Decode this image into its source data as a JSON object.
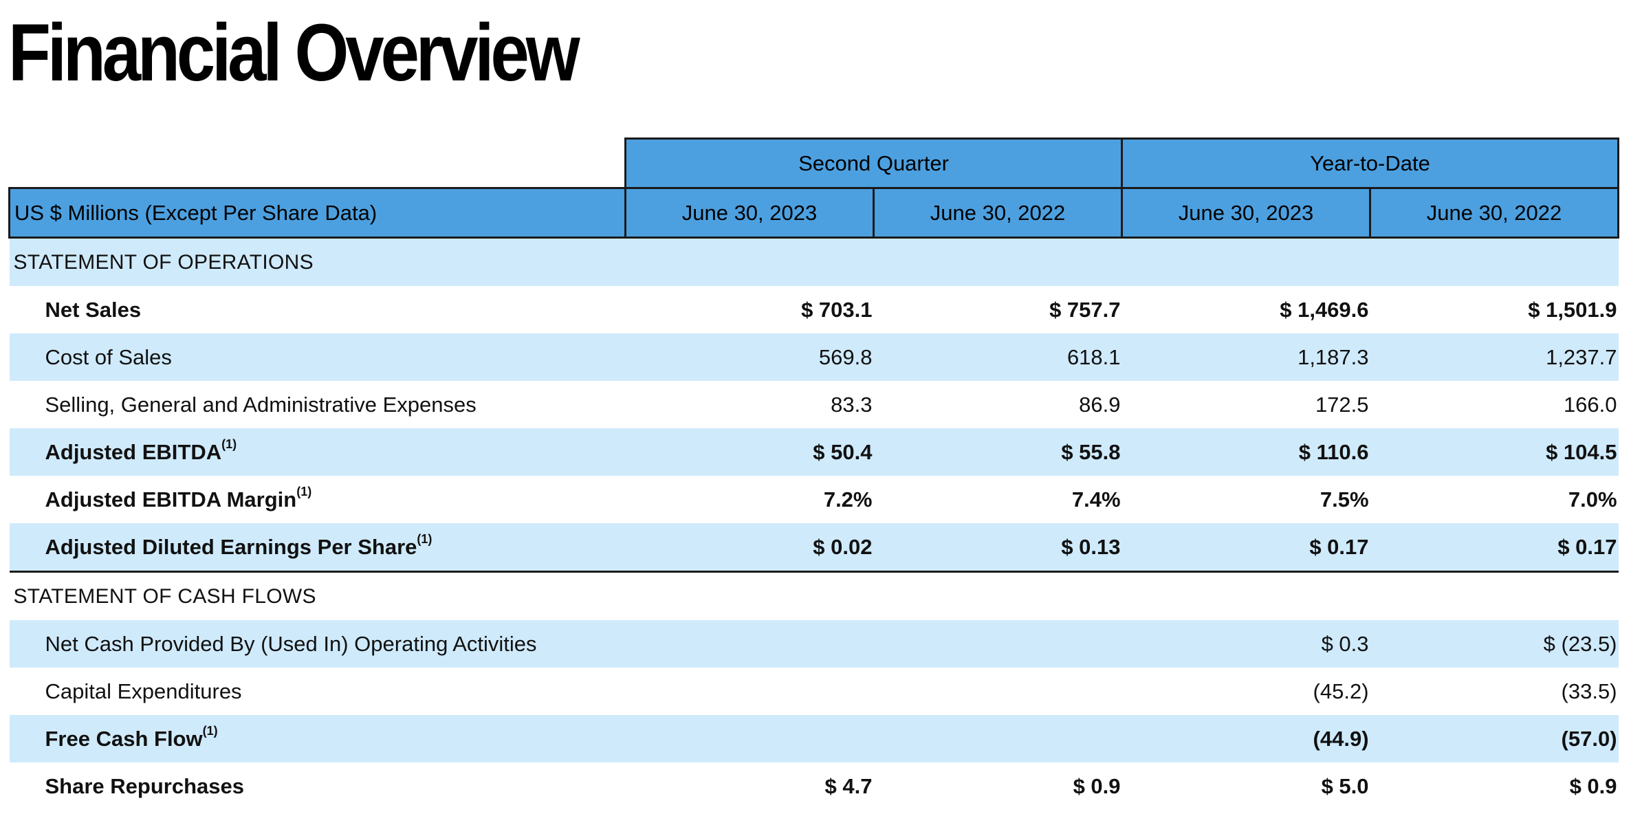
{
  "title": "Financial Overview",
  "header": {
    "groups": [
      "Second Quarter",
      "Year-to-Date"
    ],
    "label_header": "US $ Millions (Except Per Share Data)",
    "dates": [
      "June 30, 2023",
      "June 30, 2022",
      "June 30, 2023",
      "June 30, 2022"
    ]
  },
  "sections": {
    "operations": "STATEMENT OF OPERATIONS",
    "cash_flows": "STATEMENT OF CASH FLOWS"
  },
  "footnote_marker": "(1)",
  "rows": [
    {
      "label": "Net Sales",
      "values": [
        "$ 703.1",
        "$ 757.7",
        "$ 1,469.6",
        "$ 1,501.9"
      ]
    },
    {
      "label": "Cost of Sales",
      "values": [
        "569.8",
        "618.1",
        "1,187.3",
        "1,237.7"
      ]
    },
    {
      "label": "Selling, General and Administrative Expenses",
      "values": [
        "83.3",
        "86.9",
        "172.5",
        "166.0"
      ]
    },
    {
      "label": "Adjusted EBITDA",
      "values": [
        "$ 50.4",
        "$ 55.8",
        "$ 110.6",
        "$ 104.5"
      ]
    },
    {
      "label": "Adjusted EBITDA Margin",
      "values": [
        "7.2%",
        "7.4%",
        "7.5%",
        "7.0%"
      ]
    },
    {
      "label": "Adjusted Diluted Earnings Per Share",
      "values": [
        "$ 0.02",
        "$ 0.13",
        "$ 0.17",
        "$ 0.17"
      ]
    },
    {
      "label": "Net Cash Provided By (Used In) Operating Activities",
      "values": [
        "",
        "",
        "$ 0.3",
        "$ (23.5)"
      ]
    },
    {
      "label": "Capital Expenditures",
      "values": [
        "",
        "",
        "(45.2)",
        "(33.5)"
      ]
    },
    {
      "label": "Free Cash Flow",
      "values": [
        "",
        "",
        "(44.9)",
        "(57.0)"
      ]
    },
    {
      "label": "Share Repurchases",
      "values": [
        "$ 4.7",
        "$ 0.9",
        "$ 5.0",
        "$ 0.9"
      ]
    }
  ]
}
